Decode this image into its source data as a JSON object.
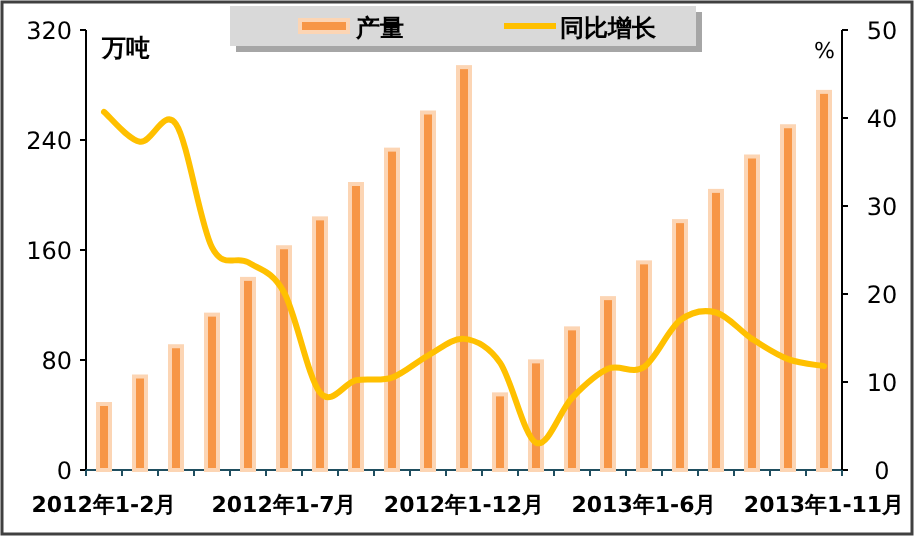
{
  "chart_data": {
    "type": "bar",
    "categories": [
      "2012年1-2月",
      null,
      null,
      null,
      null,
      "2012年1-7月",
      null,
      null,
      null,
      null,
      "2012年1-12月",
      null,
      null,
      null,
      null,
      "2013年1-6月",
      null,
      null,
      null,
      null,
      "2013年1-11月"
    ],
    "series": [
      {
        "name": "产量",
        "color": "#f79646",
        "values": [
          48,
          68,
          90,
          113,
          139,
          162,
          183,
          208,
          233,
          260,
          293,
          55,
          79,
          103,
          125,
          151,
          181,
          203,
          228,
          250,
          275
        ]
      },
      {
        "name": "同比增长",
        "type": "line",
        "axis": "y2",
        "color": "#ffc000",
        "values": [
          40.7,
          37.3,
          39.3,
          25.3,
          23.6,
          20.2,
          8.8,
          10.2,
          10.5,
          13.0,
          14.9,
          12.2,
          3.1,
          8.2,
          11.5,
          11.7,
          17.0,
          17.9,
          14.9,
          12.6,
          11.8
        ]
      }
    ],
    "ylabel": "万吨",
    "y2label": "%",
    "ylim": [
      0,
      320
    ],
    "yticks": [
      0,
      80,
      160,
      240,
      320
    ],
    "y2lim": [
      0,
      50
    ],
    "y2ticks": [
      0,
      10,
      20,
      30,
      40,
      50
    ],
    "legend": "top"
  }
}
